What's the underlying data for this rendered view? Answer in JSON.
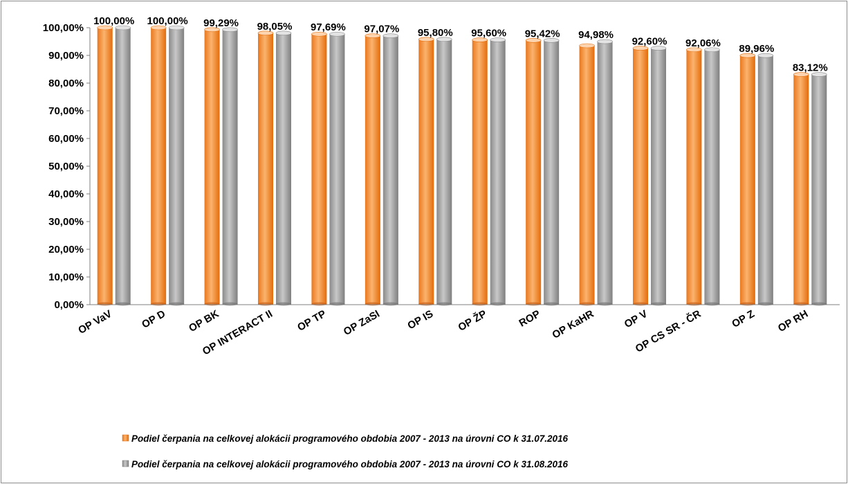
{
  "chart_data": {
    "type": "bar",
    "categories": [
      "OP VaV",
      "OP D",
      "OP BK",
      "OP INTERACT II",
      "OP TP",
      "OP ZaSI",
      "OP IS",
      "OP ŽP",
      "ROP",
      "OP KaHR",
      "OP V",
      "OP CS SR - ČR",
      "OP Z",
      "OP RH"
    ],
    "series": [
      {
        "name": "Podiel čerpania na celkovej alokácii programového obdobia 2007 - 2013 na úrovni CO k 31.07.2016",
        "color": "#f79646",
        "values": [
          100.0,
          100.0,
          99.29,
          98.05,
          97.69,
          97.07,
          95.8,
          95.6,
          95.42,
          93.5,
          92.6,
          92.06,
          89.96,
          83.12
        ]
      },
      {
        "name": "Podiel čerpania na celkovej alokácii programového obdobia 2007 - 2013 na úrovni CO k 31.08.2016",
        "color": "#a6a6a6",
        "values": [
          100.0,
          100.0,
          99.29,
          98.05,
          97.69,
          97.07,
          95.8,
          95.6,
          95.42,
          94.98,
          92.6,
          92.06,
          89.96,
          83.12
        ]
      }
    ],
    "data_labels": [
      "100,00%",
      "100,00%",
      "99,29%",
      "98,05%",
      "97,69%",
      "97,07%",
      "95,80%",
      "95,60%",
      "95,42%",
      "94,98%",
      "92,60%",
      "92,06%",
      "89,96%",
      "83,12%"
    ],
    "yticks": [
      "0,00%",
      "10,00%",
      "20,00%",
      "30,00%",
      "40,00%",
      "50,00%",
      "60,00%",
      "70,00%",
      "80,00%",
      "90,00%",
      "100,00%"
    ],
    "ylim": [
      0,
      100
    ],
    "title": "",
    "xlabel": "",
    "ylabel": "",
    "grid": false,
    "legend_position": "bottom"
  }
}
